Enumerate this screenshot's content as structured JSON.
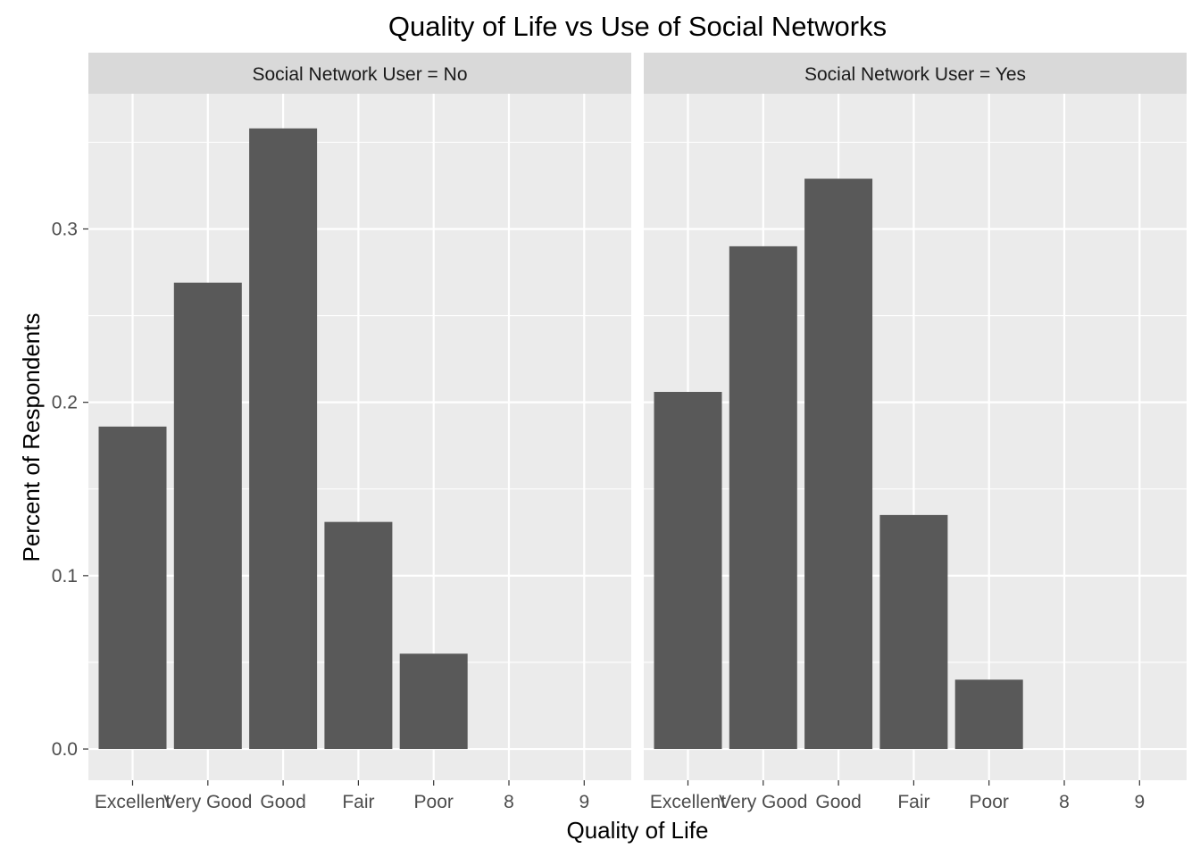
{
  "chart_data": {
    "type": "bar",
    "title": "Quality of Life vs Use of Social Networks",
    "xlabel": "Quality of Life",
    "ylabel": "Percent of Respondents",
    "categories": [
      "Excellent",
      "Very Good",
      "Good",
      "Fair",
      "Poor",
      "8",
      "9"
    ],
    "y_ticks": [
      "0.0",
      "0.1",
      "0.2",
      "0.3"
    ],
    "ylim": [
      -0.018,
      0.378
    ],
    "grid": true,
    "colors": {
      "bar": "#595959",
      "panel_background": "#ebebeb",
      "grid": "#ffffff",
      "strip_background": "#d9d9d9",
      "tick": "#333333"
    },
    "panels": [
      {
        "strip_label": "Social Network User = No",
        "values": [
          0.186,
          0.269,
          0.358,
          0.131,
          0.055,
          0,
          0
        ]
      },
      {
        "strip_label": "Social Network User = Yes",
        "values": [
          0.206,
          0.29,
          0.329,
          0.135,
          0.04,
          0,
          0
        ]
      }
    ]
  }
}
